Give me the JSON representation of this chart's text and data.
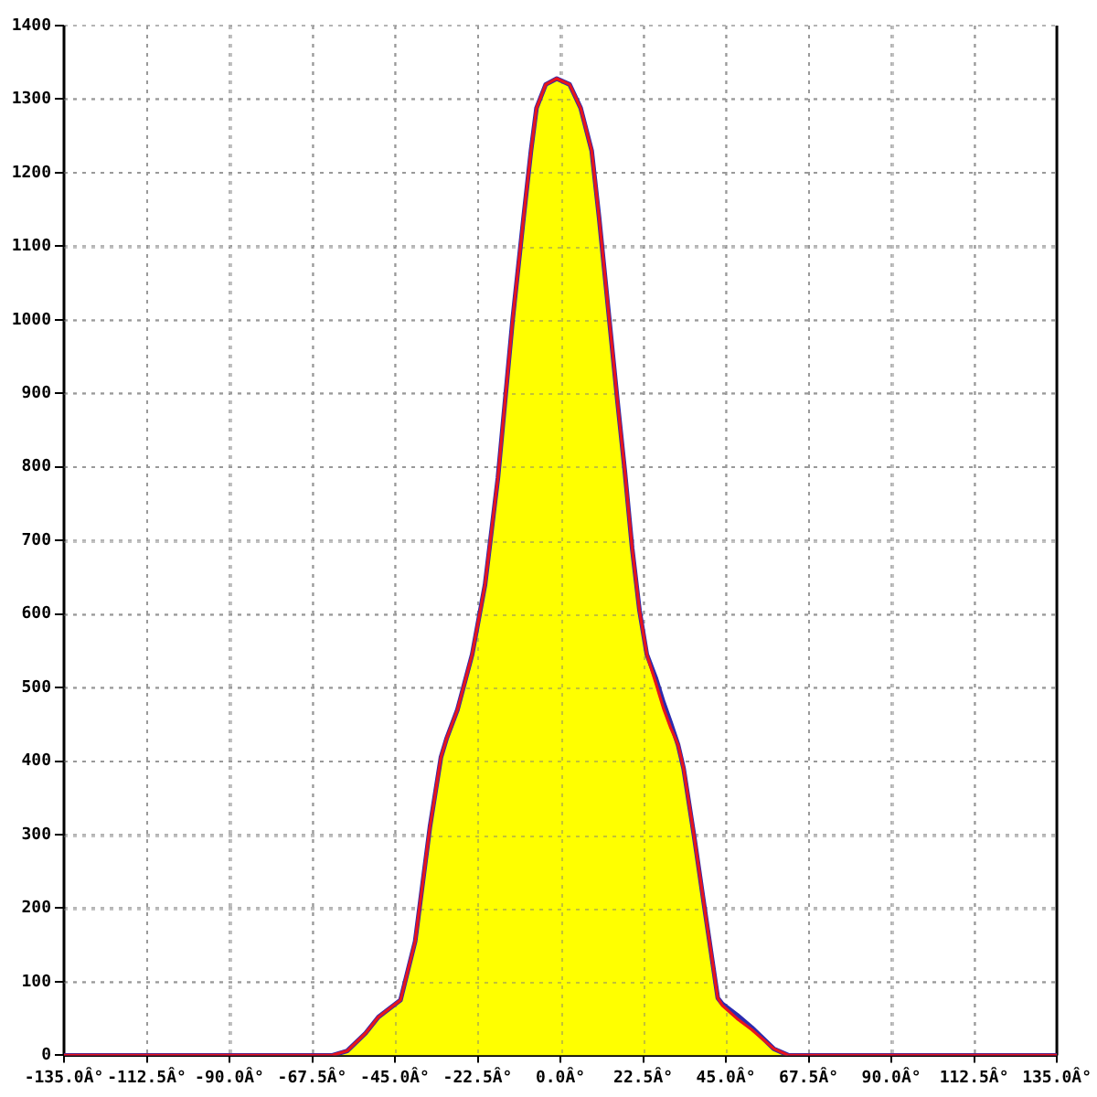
{
  "chart_data": {
    "type": "line",
    "x": [
      -135,
      -62,
      -58,
      -53,
      -49.5,
      -43.5,
      -39.5,
      -35.5,
      -32.5,
      -31,
      -28,
      -24,
      -20.5,
      -17,
      -13,
      -10,
      -8,
      -6.5,
      -4,
      -1,
      2.5,
      5.5,
      8.5,
      10.5,
      13,
      15.5,
      17.5,
      19.5,
      21.5,
      23.5,
      26,
      28,
      30,
      32,
      33.5,
      36.3,
      39.5,
      42.8,
      44,
      48,
      52,
      58,
      62,
      135
    ],
    "series": [
      {
        "type": "area",
        "color": "#ffff00",
        "x": [
          -62,
          -58,
          -53,
          -49.5,
          -43.5,
          -39.5,
          -35.5,
          -32.5,
          -31,
          -28,
          -24,
          -20.5,
          -17,
          -13,
          -10,
          -8,
          -6.5,
          -4,
          -1,
          2.5,
          5.5,
          8.5,
          10.5,
          15.5,
          19.5,
          21.5,
          23.5,
          26,
          28,
          30,
          33.5,
          36.3,
          39.5,
          42.8,
          44,
          48,
          52,
          58,
          62
        ],
        "values": [
          0,
          6,
          30,
          52,
          75,
          155,
          310,
          405,
          430,
          470,
          545,
          640,
          785,
          1000,
          1140,
          1230,
          1288,
          1320,
          1328,
          1320,
          1288,
          1230,
          1140,
          890,
          690,
          605,
          545,
          512,
          480,
          452,
          390,
          300,
          190,
          78,
          70,
          55,
          38,
          9,
          0
        ]
      },
      {
        "type": "line",
        "color": "#2b2bb0",
        "values": [
          0,
          0,
          6,
          30,
          52,
          75,
          155,
          310,
          405,
          430,
          470,
          545,
          640,
          785,
          1000,
          1140,
          1230,
          1288,
          1320,
          1328,
          1320,
          1288,
          1230,
          1140,
          1015,
          890,
          795,
          690,
          605,
          545,
          512,
          480,
          452,
          422,
          390,
          300,
          190,
          78,
          70,
          55,
          38,
          9,
          0,
          0
        ]
      },
      {
        "type": "line",
        "color": "#e8141c",
        "values": [
          0,
          0,
          6,
          30,
          52,
          75,
          155,
          310,
          405,
          430,
          470,
          545,
          640,
          785,
          1000,
          1140,
          1230,
          1288,
          1320,
          1328,
          1320,
          1288,
          1230,
          1140,
          1015,
          890,
          795,
          690,
          605,
          545,
          505,
          472,
          445,
          422,
          390,
          300,
          190,
          78,
          68,
          50,
          35,
          9,
          0,
          0
        ]
      }
    ],
    "xlim": [
      -135,
      135
    ],
    "xticks": [
      {
        "value": -135,
        "label": "-135.0Â°"
      },
      {
        "value": -112.5,
        "label": "-112.5Â°"
      },
      {
        "value": -90,
        "label": "-90.0Â°"
      },
      {
        "value": -67.5,
        "label": "-67.5Â°"
      },
      {
        "value": -45,
        "label": "-45.0Â°"
      },
      {
        "value": -22.5,
        "label": "-22.5Â°"
      },
      {
        "value": 0,
        "label": "0.0Â°"
      },
      {
        "value": 22.5,
        "label": "22.5Â°"
      },
      {
        "value": 45,
        "label": "45.0Â°"
      },
      {
        "value": 67.5,
        "label": "67.5Â°"
      },
      {
        "value": 90,
        "label": "90.0Â°"
      },
      {
        "value": 112.5,
        "label": "112.5Â°"
      },
      {
        "value": 135,
        "label": "135.0Â°"
      }
    ],
    "ylim": [
      0,
      1400
    ],
    "yticks": [
      0,
      100,
      200,
      300,
      400,
      500,
      600,
      700,
      800,
      900,
      1000,
      1100,
      1200,
      1300,
      1400
    ],
    "grid": true,
    "legend": false,
    "marker": "none",
    "line_style": "solid"
  }
}
